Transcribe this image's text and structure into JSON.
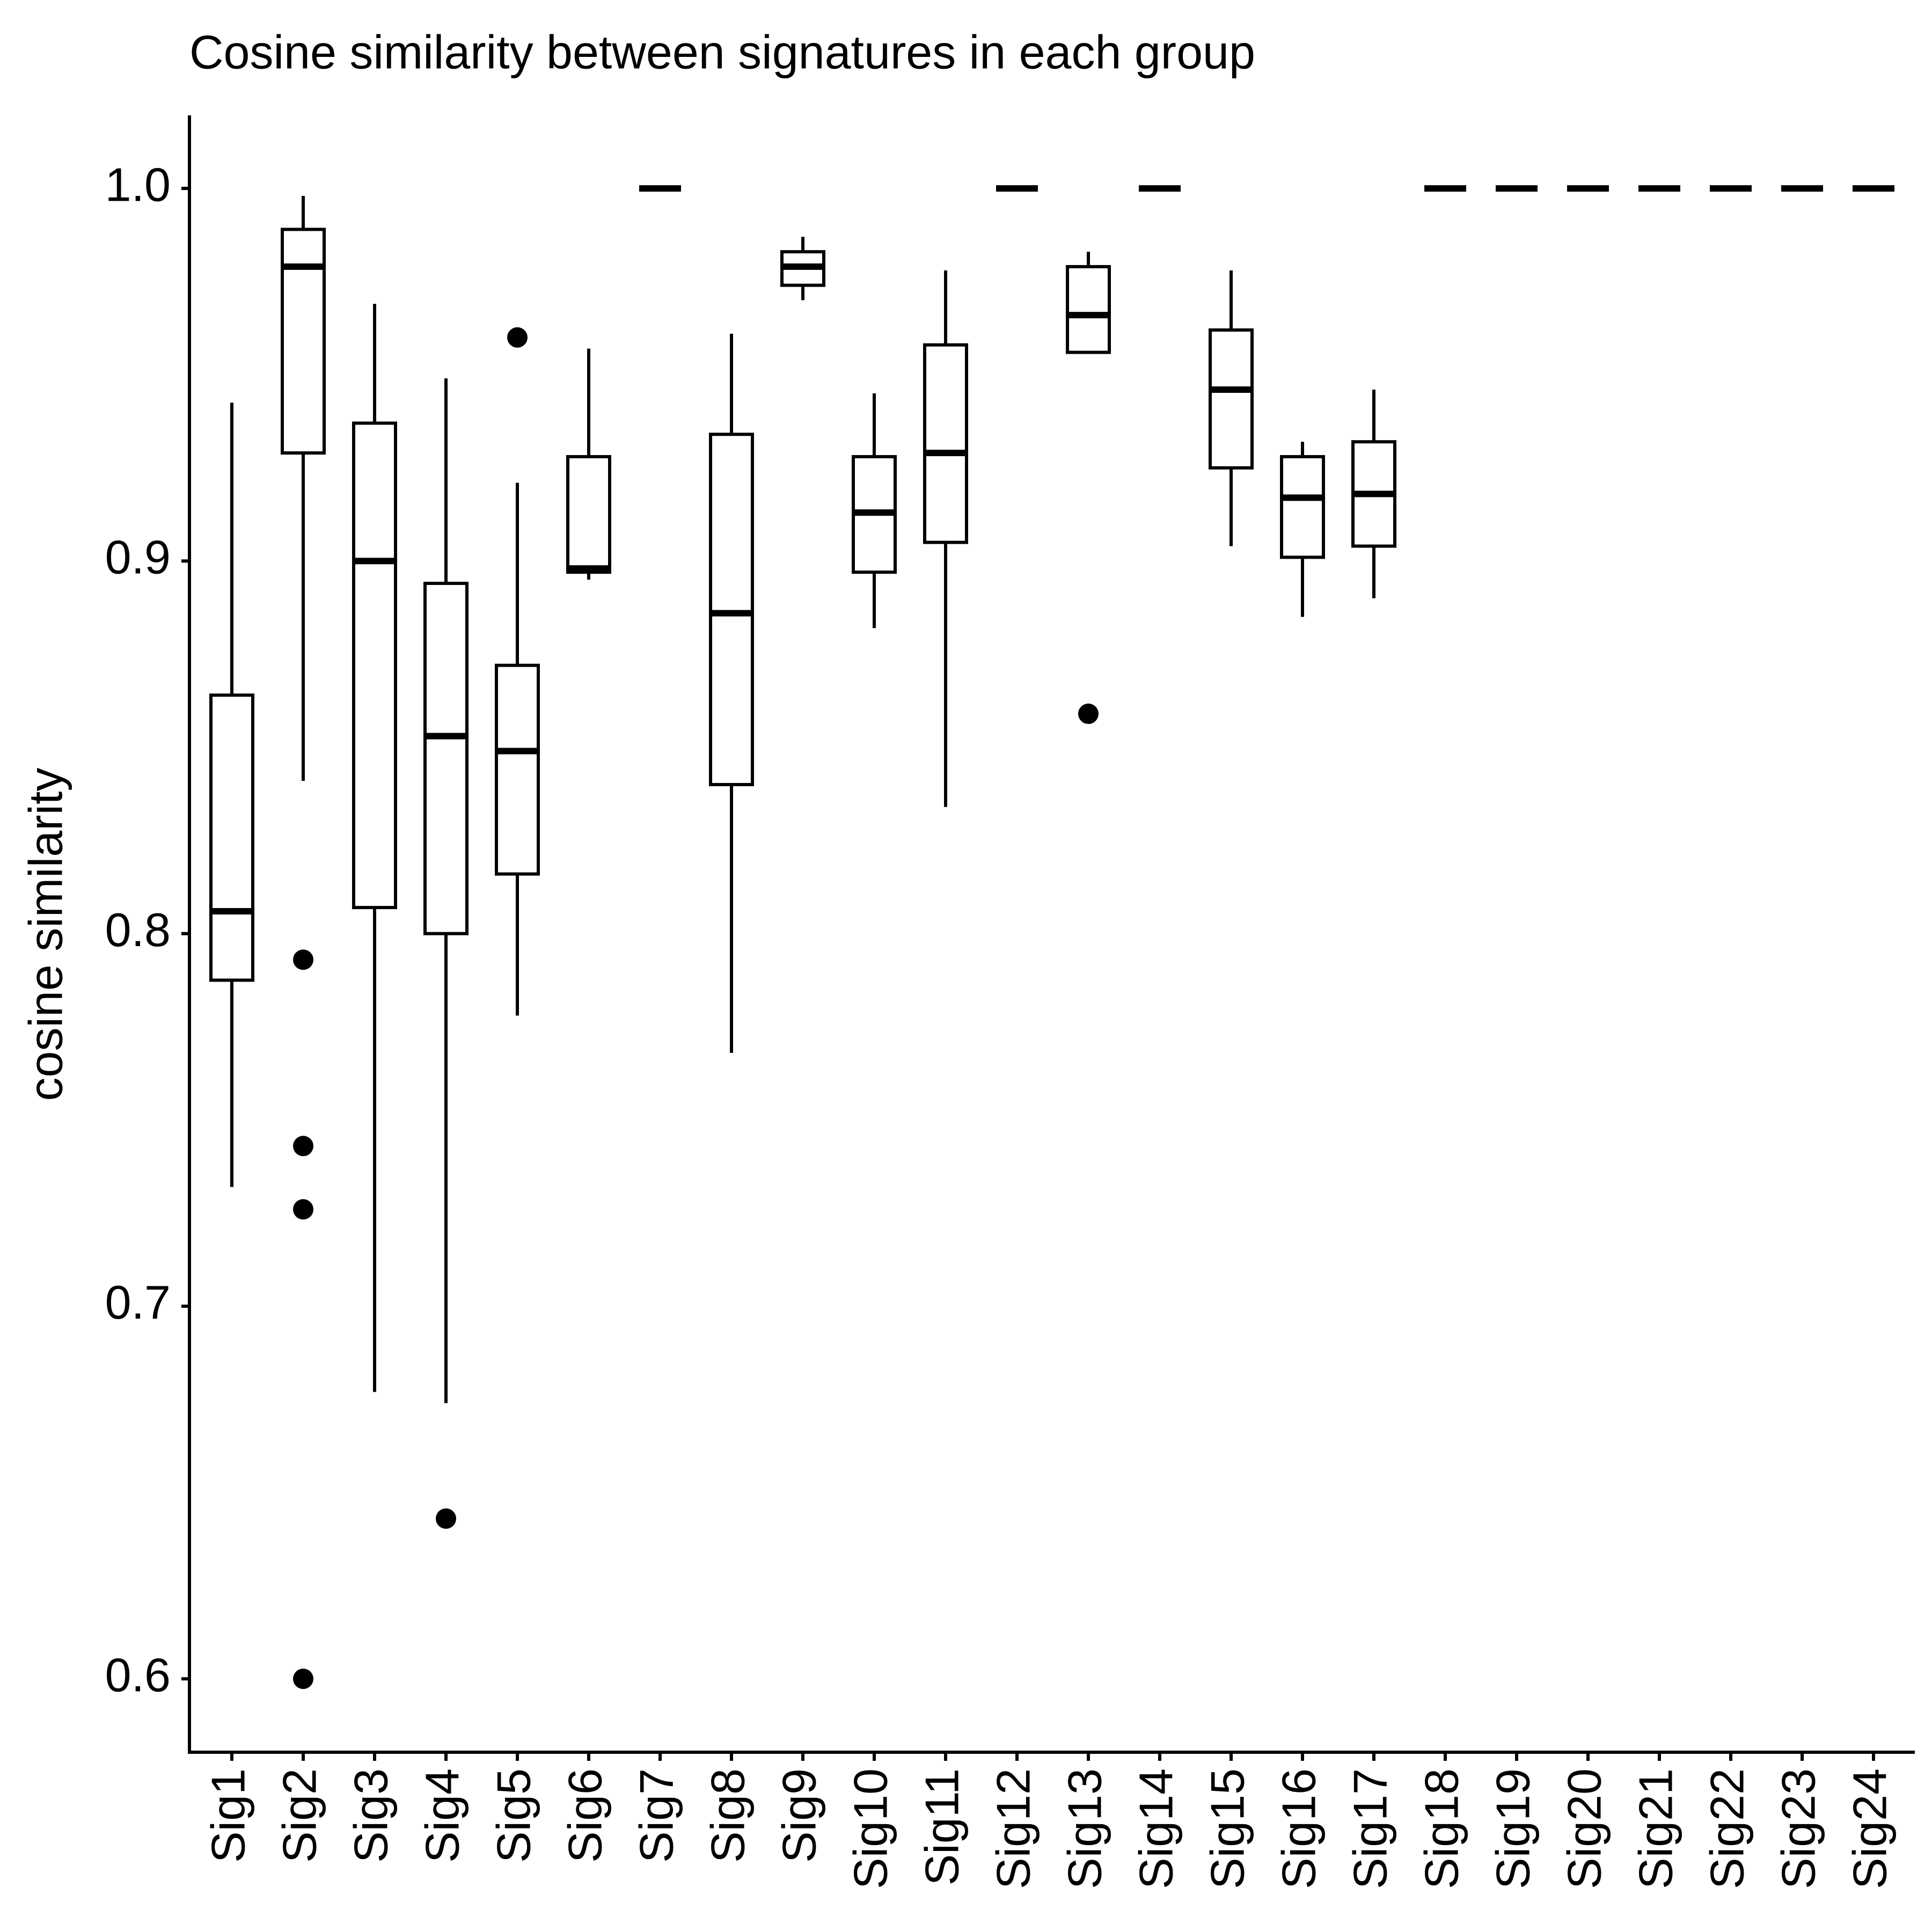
{
  "chart_data": {
    "type": "box",
    "title": "Cosine similarity between signatures in each group",
    "y_label": "cosine similarity",
    "categories": [
      "Sig1",
      "Sig2",
      "Sig3",
      "Sig4",
      "Sig5",
      "Sig6",
      "Sig7",
      "Sig8",
      "Sig9",
      "Sig10",
      "Sig11",
      "Sig12",
      "Sig13",
      "Sig14",
      "Sig15",
      "Sig16",
      "Sig17",
      "Sig18",
      "Sig19",
      "Sig20",
      "Sig21",
      "Sig22",
      "Sig23",
      "Sig24"
    ],
    "boxes": [
      {
        "min": 0.732,
        "q1": 0.7875,
        "median": 0.806,
        "q3": 0.864,
        "max": 0.9425,
        "outliers": []
      },
      {
        "min": 0.841,
        "q1": 0.929,
        "median": 0.979,
        "q3": 0.989,
        "max": 0.998,
        "outliers": [
          0.793,
          0.743,
          0.726,
          0.6
        ]
      },
      {
        "min": 0.677,
        "q1": 0.807,
        "median": 0.9,
        "q3": 0.937,
        "max": 0.969,
        "outliers": []
      },
      {
        "min": 0.674,
        "q1": 0.8,
        "median": 0.853,
        "q3": 0.894,
        "max": 0.949,
        "outliers": [
          0.643
        ]
      },
      {
        "min": 0.778,
        "q1": 0.816,
        "median": 0.849,
        "q3": 0.872,
        "max": 0.921,
        "outliers": [
          0.96
        ]
      },
      {
        "min": 0.895,
        "q1": 0.897,
        "median": 0.898,
        "q3": 0.928,
        "max": 0.957,
        "outliers": []
      },
      {
        "min": 1.0,
        "q1": 1.0,
        "median": 1.0,
        "q3": 1.0,
        "max": 1.0,
        "outliers": []
      },
      {
        "min": 0.768,
        "q1": 0.84,
        "median": 0.886,
        "q3": 0.934,
        "max": 0.961,
        "outliers": []
      },
      {
        "min": 0.97,
        "q1": 0.974,
        "median": 0.979,
        "q3": 0.983,
        "max": 0.987,
        "outliers": []
      },
      {
        "min": 0.882,
        "q1": 0.897,
        "median": 0.913,
        "q3": 0.928,
        "max": 0.945,
        "outliers": []
      },
      {
        "min": 0.834,
        "q1": 0.905,
        "median": 0.929,
        "q3": 0.958,
        "max": 0.978,
        "outliers": []
      },
      {
        "min": 1.0,
        "q1": 1.0,
        "median": 1.0,
        "q3": 1.0,
        "max": 1.0,
        "outliers": []
      },
      {
        "min": 0.956,
        "q1": 0.956,
        "median": 0.966,
        "q3": 0.979,
        "max": 0.983,
        "outliers": [
          0.859
        ]
      },
      {
        "min": 1.0,
        "q1": 1.0,
        "median": 1.0,
        "q3": 1.0,
        "max": 1.0,
        "outliers": []
      },
      {
        "min": 0.904,
        "q1": 0.925,
        "median": 0.946,
        "q3": 0.962,
        "max": 0.978,
        "outliers": []
      },
      {
        "min": 0.885,
        "q1": 0.901,
        "median": 0.917,
        "q3": 0.928,
        "max": 0.932,
        "outliers": []
      },
      {
        "min": 0.89,
        "q1": 0.904,
        "median": 0.918,
        "q3": 0.932,
        "max": 0.946,
        "outliers": []
      },
      {
        "min": 1.0,
        "q1": 1.0,
        "median": 1.0,
        "q3": 1.0,
        "max": 1.0,
        "outliers": []
      },
      {
        "min": 1.0,
        "q1": 1.0,
        "median": 1.0,
        "q3": 1.0,
        "max": 1.0,
        "outliers": []
      },
      {
        "min": 1.0,
        "q1": 1.0,
        "median": 1.0,
        "q3": 1.0,
        "max": 1.0,
        "outliers": []
      },
      {
        "min": 1.0,
        "q1": 1.0,
        "median": 1.0,
        "q3": 1.0,
        "max": 1.0,
        "outliers": []
      },
      {
        "min": 1.0,
        "q1": 1.0,
        "median": 1.0,
        "q3": 1.0,
        "max": 1.0,
        "outliers": []
      },
      {
        "min": 1.0,
        "q1": 1.0,
        "median": 1.0,
        "q3": 1.0,
        "max": 1.0,
        "outliers": []
      },
      {
        "min": 1.0,
        "q1": 1.0,
        "median": 1.0,
        "q3": 1.0,
        "max": 1.0,
        "outliers": []
      }
    ],
    "color": "#000000",
    "ylim": [
      0.5803,
      1.0196
    ],
    "yticks": [
      {
        "value": 0.6,
        "label": "0.6"
      },
      {
        "value": 0.7,
        "label": "0.7"
      },
      {
        "value": 0.8,
        "label": "0.8"
      },
      {
        "value": 0.9,
        "label": "0.9"
      },
      {
        "value": 1.0,
        "label": "1.0"
      }
    ]
  }
}
